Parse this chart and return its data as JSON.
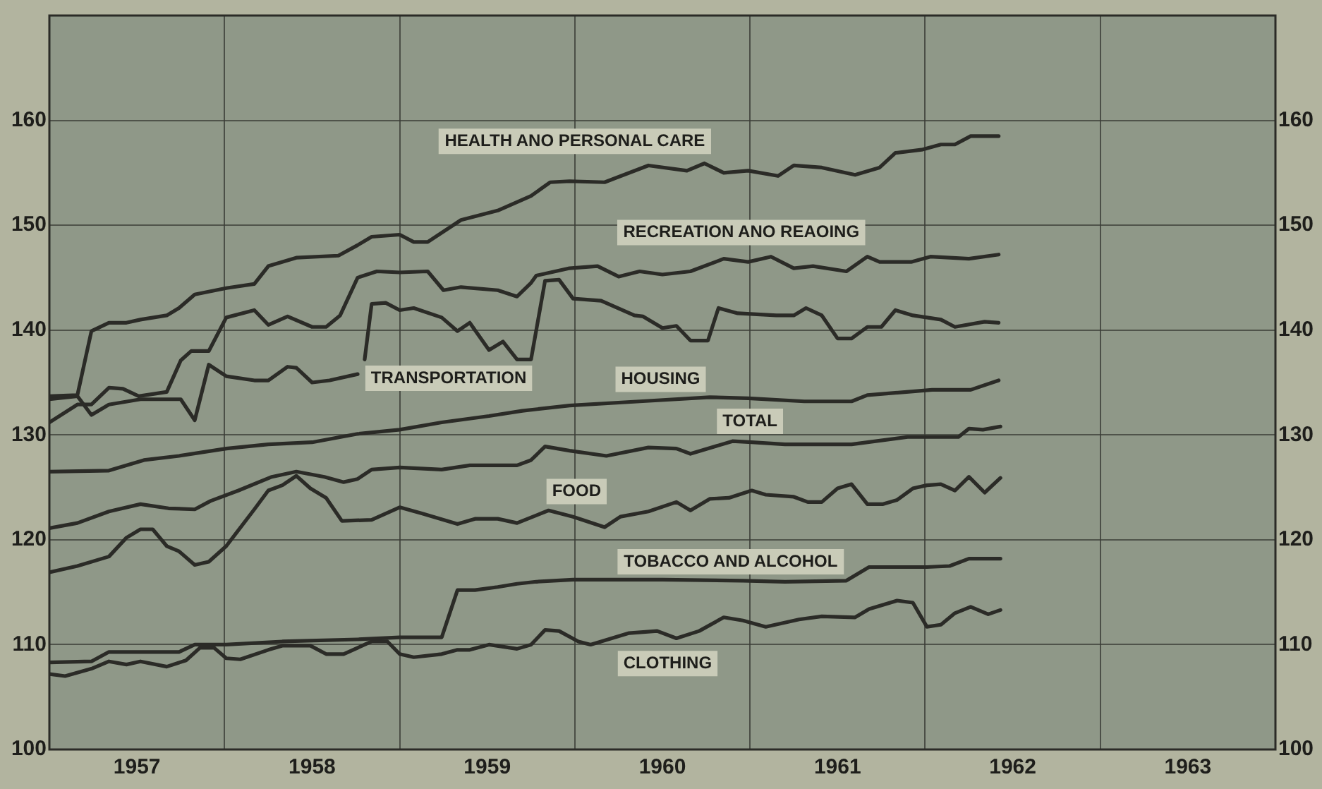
{
  "chart_data": {
    "type": "line",
    "xlim": [
      1957,
      1964
    ],
    "xticks": [
      {
        "value": 1957,
        "label": null
      },
      {
        "value": 1957.5,
        "label": "1957"
      },
      {
        "value": 1958,
        "label": null
      },
      {
        "value": 1958.5,
        "label": "1958"
      },
      {
        "value": 1959,
        "label": null
      },
      {
        "value": 1959.5,
        "label": "1959"
      },
      {
        "value": 1960,
        "label": null
      },
      {
        "value": 1960.5,
        "label": "1960"
      },
      {
        "value": 1961,
        "label": null
      },
      {
        "value": 1961.5,
        "label": "1961"
      },
      {
        "value": 1962,
        "label": null
      },
      {
        "value": 1962.5,
        "label": "1962"
      },
      {
        "value": 1963,
        "label": null
      },
      {
        "value": 1963.5,
        "label": "1963"
      },
      {
        "value": 1964,
        "label": null
      }
    ],
    "ylim": [
      100,
      170
    ],
    "yticks": [
      100,
      110,
      120,
      130,
      140,
      150,
      160
    ],
    "y2lim": [
      100,
      170
    ],
    "y2ticks": [
      100,
      110,
      120,
      130,
      140,
      150,
      160
    ],
    "grid": true,
    "legend": false,
    "marker": "none",
    "line_style": "solid",
    "series": [
      {
        "name": "HEALTH ANO PERSONAL CARE",
        "color": "#2b2b27",
        "x": [
          1957.0,
          1957.16,
          1957.24,
          1957.34,
          1957.44,
          1957.52,
          1957.67,
          1957.74,
          1957.83,
          1958.01,
          1958.17,
          1958.25,
          1958.41,
          1958.65,
          1958.76,
          1958.84,
          1959.0,
          1959.08,
          1959.16,
          1959.35,
          1959.56,
          1959.75,
          1959.86,
          1959.97,
          1960.17,
          1960.42,
          1960.64,
          1960.74,
          1960.85,
          1960.99,
          1961.16,
          1961.25,
          1961.41,
          1961.6,
          1961.74,
          1961.83,
          1961.98,
          1962.09,
          1962.17,
          1962.26,
          1962.42
        ],
        "values": [
          133.7,
          133.8,
          139.9,
          140.7,
          140.7,
          141.0,
          141.4,
          142.1,
          143.4,
          144.0,
          144.4,
          146.1,
          146.9,
          147.1,
          148.1,
          148.9,
          149.1,
          148.4,
          148.4,
          150.5,
          151.4,
          152.8,
          154.1,
          154.2,
          154.1,
          155.7,
          155.2,
          155.9,
          155.0,
          155.2,
          154.7,
          155.7,
          155.5,
          154.8,
          155.5,
          156.9,
          157.2,
          157.7,
          157.7,
          158.5,
          158.5
        ]
      },
      {
        "name": "RECREATION ANO REAOING",
        "color": "#2b2b27",
        "x": [
          1957.0,
          1957.16,
          1957.24,
          1957.34,
          1957.42,
          1957.51,
          1957.67,
          1957.75,
          1957.81,
          1957.91,
          1958.01,
          1958.17,
          1958.25,
          1958.36,
          1958.5,
          1958.58,
          1958.66,
          1958.76,
          1958.87,
          1959.0,
          1959.16,
          1959.25,
          1959.35,
          1959.56,
          1959.67,
          1959.75,
          1959.78,
          1959.97,
          1960.13,
          1960.25,
          1960.37,
          1960.5,
          1960.66,
          1960.85,
          1960.99,
          1961.12,
          1961.25,
          1961.36,
          1961.55,
          1961.67,
          1961.74,
          1961.92,
          1962.03,
          1962.25,
          1962.42
        ],
        "values": [
          131.2,
          132.9,
          132.9,
          134.5,
          134.4,
          133.7,
          134.1,
          137.1,
          138.0,
          138.0,
          141.2,
          141.9,
          140.5,
          141.3,
          140.3,
          140.3,
          141.4,
          145.0,
          145.6,
          145.5,
          145.6,
          143.8,
          144.1,
          143.8,
          143.2,
          144.5,
          145.2,
          145.9,
          146.1,
          145.1,
          145.6,
          145.3,
          145.6,
          146.8,
          146.5,
          147.0,
          145.9,
          146.1,
          145.6,
          147.0,
          146.5,
          146.5,
          147.0,
          146.8,
          147.2
        ]
      },
      {
        "name": "TRANSPORTATION",
        "color": "#2b2b27",
        "x": [
          1957.0,
          1957.16,
          1957.24,
          1957.34,
          1957.52,
          1957.75,
          1957.83,
          1957.91,
          1958.01,
          1958.17,
          1958.25,
          1958.36,
          1958.41,
          1958.5,
          1958.6,
          1958.76,
          1958.78,
          1958.8,
          1958.84,
          1958.92,
          1959.0,
          1959.08,
          1959.24,
          1959.33,
          1959.4,
          1959.51,
          1959.59,
          1959.67,
          1959.75,
          1959.83,
          1959.91,
          1959.99,
          1960.15,
          1960.34,
          1960.39,
          1960.5,
          1960.58,
          1960.66,
          1960.76,
          1960.82,
          1960.93,
          1961.15,
          1961.25,
          1961.32,
          1961.41,
          1961.5,
          1961.58,
          1961.67,
          1961.75,
          1961.83,
          1961.93,
          1962.09,
          1962.17,
          1962.34,
          1962.42
        ],
        "values": [
          133.4,
          133.7,
          131.9,
          132.9,
          133.4,
          133.4,
          131.4,
          136.7,
          135.6,
          135.2,
          135.2,
          136.5,
          136.4,
          135.0,
          135.2,
          135.8,
          null,
          137.2,
          142.5,
          142.6,
          141.9,
          142.1,
          141.2,
          139.9,
          140.7,
          138.1,
          138.9,
          137.2,
          137.2,
          144.7,
          144.8,
          143.0,
          142.8,
          141.4,
          141.3,
          140.2,
          140.4,
          139.0,
          139.0,
          142.1,
          141.6,
          141.4,
          141.4,
          142.1,
          141.4,
          139.2,
          139.2,
          140.3,
          140.3,
          141.9,
          141.4,
          141.0,
          140.3,
          140.8,
          140.7
        ]
      },
      {
        "name": "HOUSING",
        "color": "#2b2b27",
        "x": [
          1957.0,
          1957.34,
          1957.54,
          1957.74,
          1958.01,
          1958.25,
          1958.5,
          1958.76,
          1959.0,
          1959.24,
          1959.51,
          1959.7,
          1959.97,
          1960.37,
          1960.77,
          1960.99,
          1961.31,
          1961.58,
          1961.67,
          1962.04,
          1962.26,
          1962.42
        ],
        "values": [
          126.5,
          126.6,
          127.6,
          128.0,
          128.7,
          129.1,
          129.3,
          130.1,
          130.5,
          131.2,
          131.8,
          132.3,
          132.8,
          133.2,
          133.6,
          133.5,
          133.2,
          133.2,
          133.8,
          134.3,
          134.3,
          135.2
        ]
      },
      {
        "name": "TOTAL",
        "color": "#2b2b27",
        "x": [
          1957.0,
          1957.16,
          1957.34,
          1957.52,
          1957.68,
          1957.83,
          1957.92,
          1958.08,
          1958.27,
          1958.41,
          1958.57,
          1958.68,
          1958.76,
          1958.84,
          1959.0,
          1959.24,
          1959.4,
          1959.67,
          1959.75,
          1959.83,
          1959.97,
          1960.18,
          1960.42,
          1960.58,
          1960.66,
          1960.9,
          1961.01,
          1961.2,
          1961.58,
          1961.9,
          1962.19,
          1962.25,
          1962.33,
          1962.43
        ],
        "values": [
          121.1,
          121.6,
          122.7,
          123.4,
          123.0,
          122.9,
          123.7,
          124.7,
          126.0,
          126.5,
          126.0,
          125.5,
          125.8,
          126.7,
          126.9,
          126.7,
          127.1,
          127.1,
          127.6,
          128.9,
          128.5,
          128.0,
          128.8,
          128.7,
          128.2,
          129.4,
          129.3,
          129.1,
          129.1,
          129.8,
          129.8,
          130.6,
          130.5,
          130.8
        ]
      },
      {
        "name": "FOOD",
        "color": "#2b2b27",
        "x": [
          1957.0,
          1957.16,
          1957.34,
          1957.44,
          1957.52,
          1957.59,
          1957.67,
          1957.74,
          1957.83,
          1957.91,
          1958.01,
          1958.17,
          1958.25,
          1958.33,
          1958.41,
          1958.49,
          1958.58,
          1958.67,
          1958.84,
          1959.0,
          1959.13,
          1959.33,
          1959.43,
          1959.56,
          1959.67,
          1959.85,
          1959.99,
          1960.17,
          1960.26,
          1960.42,
          1960.58,
          1960.66,
          1960.77,
          1960.88,
          1961.01,
          1961.09,
          1961.25,
          1961.33,
          1961.41,
          1961.5,
          1961.58,
          1961.67,
          1961.76,
          1961.84,
          1961.93,
          1962.01,
          1962.09,
          1962.17,
          1962.25,
          1962.34,
          1962.43
        ],
        "values": [
          116.9,
          117.5,
          118.4,
          120.2,
          121.0,
          121.0,
          119.4,
          118.9,
          117.6,
          117.9,
          119.4,
          122.9,
          124.7,
          125.2,
          126.1,
          124.9,
          124.0,
          121.8,
          121.9,
          123.1,
          122.5,
          121.5,
          122.0,
          122.0,
          121.6,
          122.8,
          122.2,
          121.2,
          122.2,
          122.7,
          123.6,
          122.8,
          123.9,
          124.0,
          124.7,
          124.3,
          124.1,
          123.6,
          123.6,
          124.9,
          125.3,
          123.4,
          123.4,
          123.8,
          124.9,
          125.2,
          125.3,
          124.7,
          126.0,
          124.5,
          125.9
        ]
      },
      {
        "name": "TOBACCO AND ALCOHOL",
        "color": "#2b2b27",
        "x": [
          1957.0,
          1957.24,
          1957.34,
          1957.74,
          1957.83,
          1958.01,
          1958.33,
          1958.76,
          1959.0,
          1959.24,
          1959.33,
          1959.43,
          1959.56,
          1959.67,
          1959.78,
          1959.99,
          1960.5,
          1960.96,
          1961.2,
          1961.55,
          1961.68,
          1962.01,
          1962.14,
          1962.25,
          1962.43
        ],
        "values": [
          108.3,
          108.4,
          109.3,
          109.3,
          110.0,
          110.0,
          110.3,
          110.5,
          110.7,
          110.7,
          115.2,
          115.2,
          115.5,
          115.8,
          116.0,
          116.2,
          116.2,
          116.1,
          116.0,
          116.1,
          117.4,
          117.4,
          117.5,
          118.2,
          118.2
        ]
      },
      {
        "name": "CLOTHING",
        "color": "#2b2b27",
        "x": [
          1957.0,
          1957.09,
          1957.24,
          1957.34,
          1957.44,
          1957.52,
          1957.67,
          1957.78,
          1957.86,
          1957.94,
          1958.01,
          1958.09,
          1958.25,
          1958.33,
          1958.49,
          1958.58,
          1958.68,
          1958.84,
          1958.93,
          1959.0,
          1959.08,
          1959.24,
          1959.33,
          1959.4,
          1959.51,
          1959.67,
          1959.75,
          1959.83,
          1959.91,
          1960.02,
          1960.09,
          1960.31,
          1960.47,
          1960.58,
          1960.71,
          1960.85,
          1960.96,
          1961.09,
          1961.28,
          1961.41,
          1961.6,
          1961.68,
          1961.84,
          1961.93,
          1962.01,
          1962.09,
          1962.17,
          1962.26,
          1962.36,
          1962.43
        ],
        "values": [
          107.2,
          107.0,
          107.7,
          108.4,
          108.1,
          108.4,
          107.9,
          108.5,
          109.7,
          109.7,
          108.7,
          108.6,
          109.5,
          109.9,
          109.9,
          109.1,
          109.1,
          110.3,
          110.3,
          109.1,
          108.8,
          109.1,
          109.5,
          109.5,
          110.0,
          109.6,
          110.0,
          111.4,
          111.3,
          110.3,
          110.0,
          111.1,
          111.3,
          110.6,
          111.3,
          112.6,
          112.3,
          111.7,
          112.4,
          112.7,
          112.6,
          113.4,
          114.2,
          114.0,
          111.7,
          111.9,
          113.0,
          113.6,
          112.9,
          113.3
        ]
      }
    ]
  }
}
